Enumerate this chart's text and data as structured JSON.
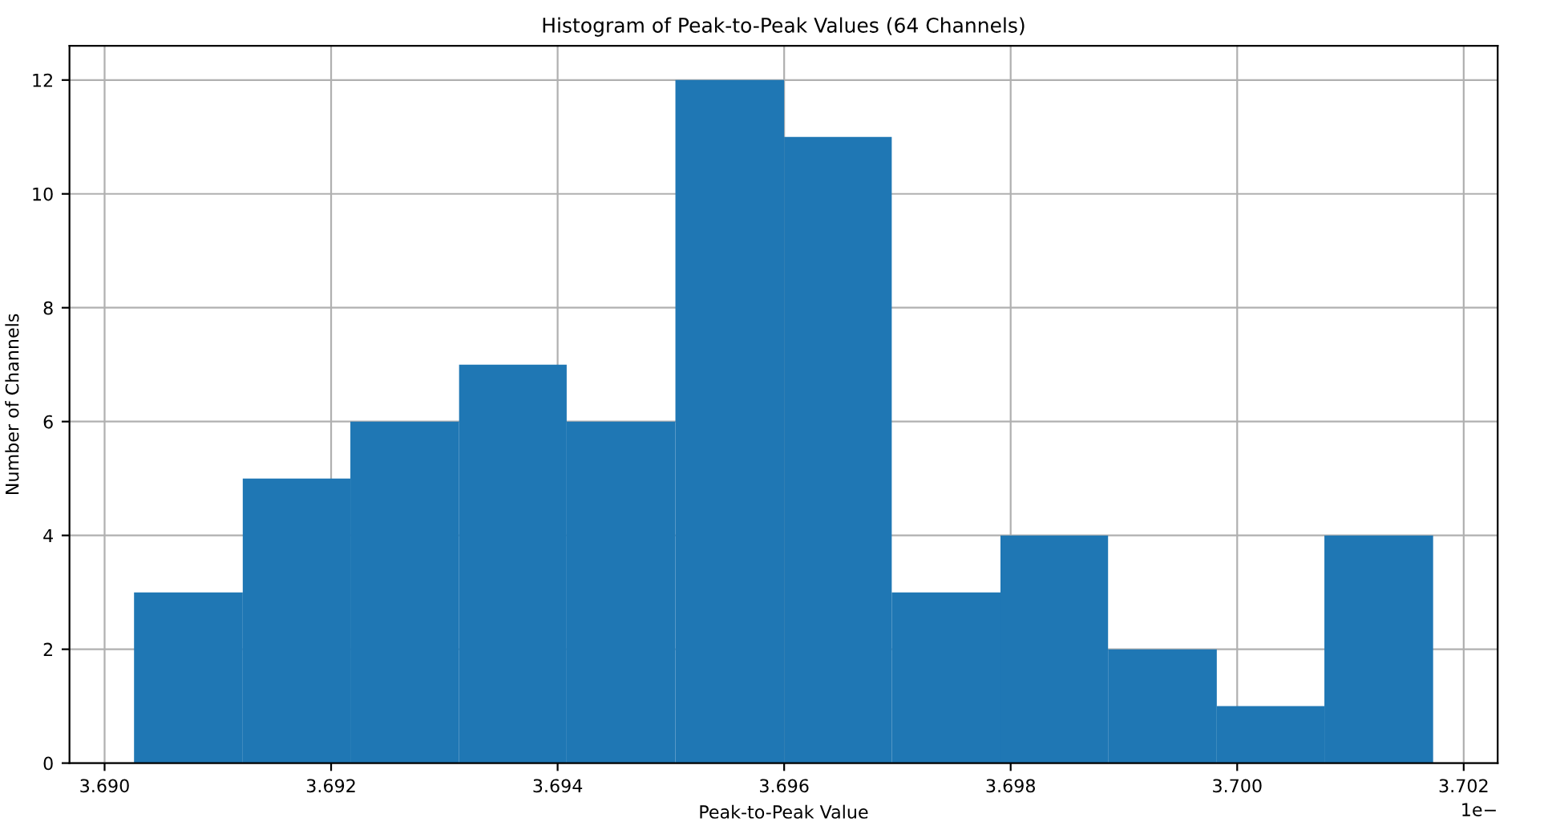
{
  "chart_data": {
    "type": "histogram",
    "title": "Histogram of Peak-to-Peak Values (64 Channels)",
    "xlabel": "Peak-to-Peak Value",
    "ylabel": "Number of Channels",
    "bins": [
      3.69026,
      3.69122,
      3.69217,
      3.69313,
      3.69408,
      3.69504,
      3.696,
      3.69695,
      3.69791,
      3.69886,
      3.69982,
      3.70077,
      3.70173
    ],
    "values": [
      3,
      5,
      6,
      7,
      6,
      12,
      11,
      3,
      4,
      2,
      1,
      4
    ],
    "color": "#1f77b4",
    "xlim": [
      3.68969,
      3.7023
    ],
    "ylim": [
      0,
      12.6
    ],
    "xticks": [
      {
        "value": 3.69,
        "label": "3.690"
      },
      {
        "value": 3.692,
        "label": "3.692"
      },
      {
        "value": 3.694,
        "label": "3.694"
      },
      {
        "value": 3.696,
        "label": "3.696"
      },
      {
        "value": 3.698,
        "label": "3.698"
      },
      {
        "value": 3.7,
        "label": "3.700"
      },
      {
        "value": 3.702,
        "label": "3.702"
      }
    ],
    "yticks": [
      0,
      2,
      4,
      6,
      8,
      10,
      12
    ],
    "grid": true,
    "annotations": [
      "1e−"
    ]
  }
}
